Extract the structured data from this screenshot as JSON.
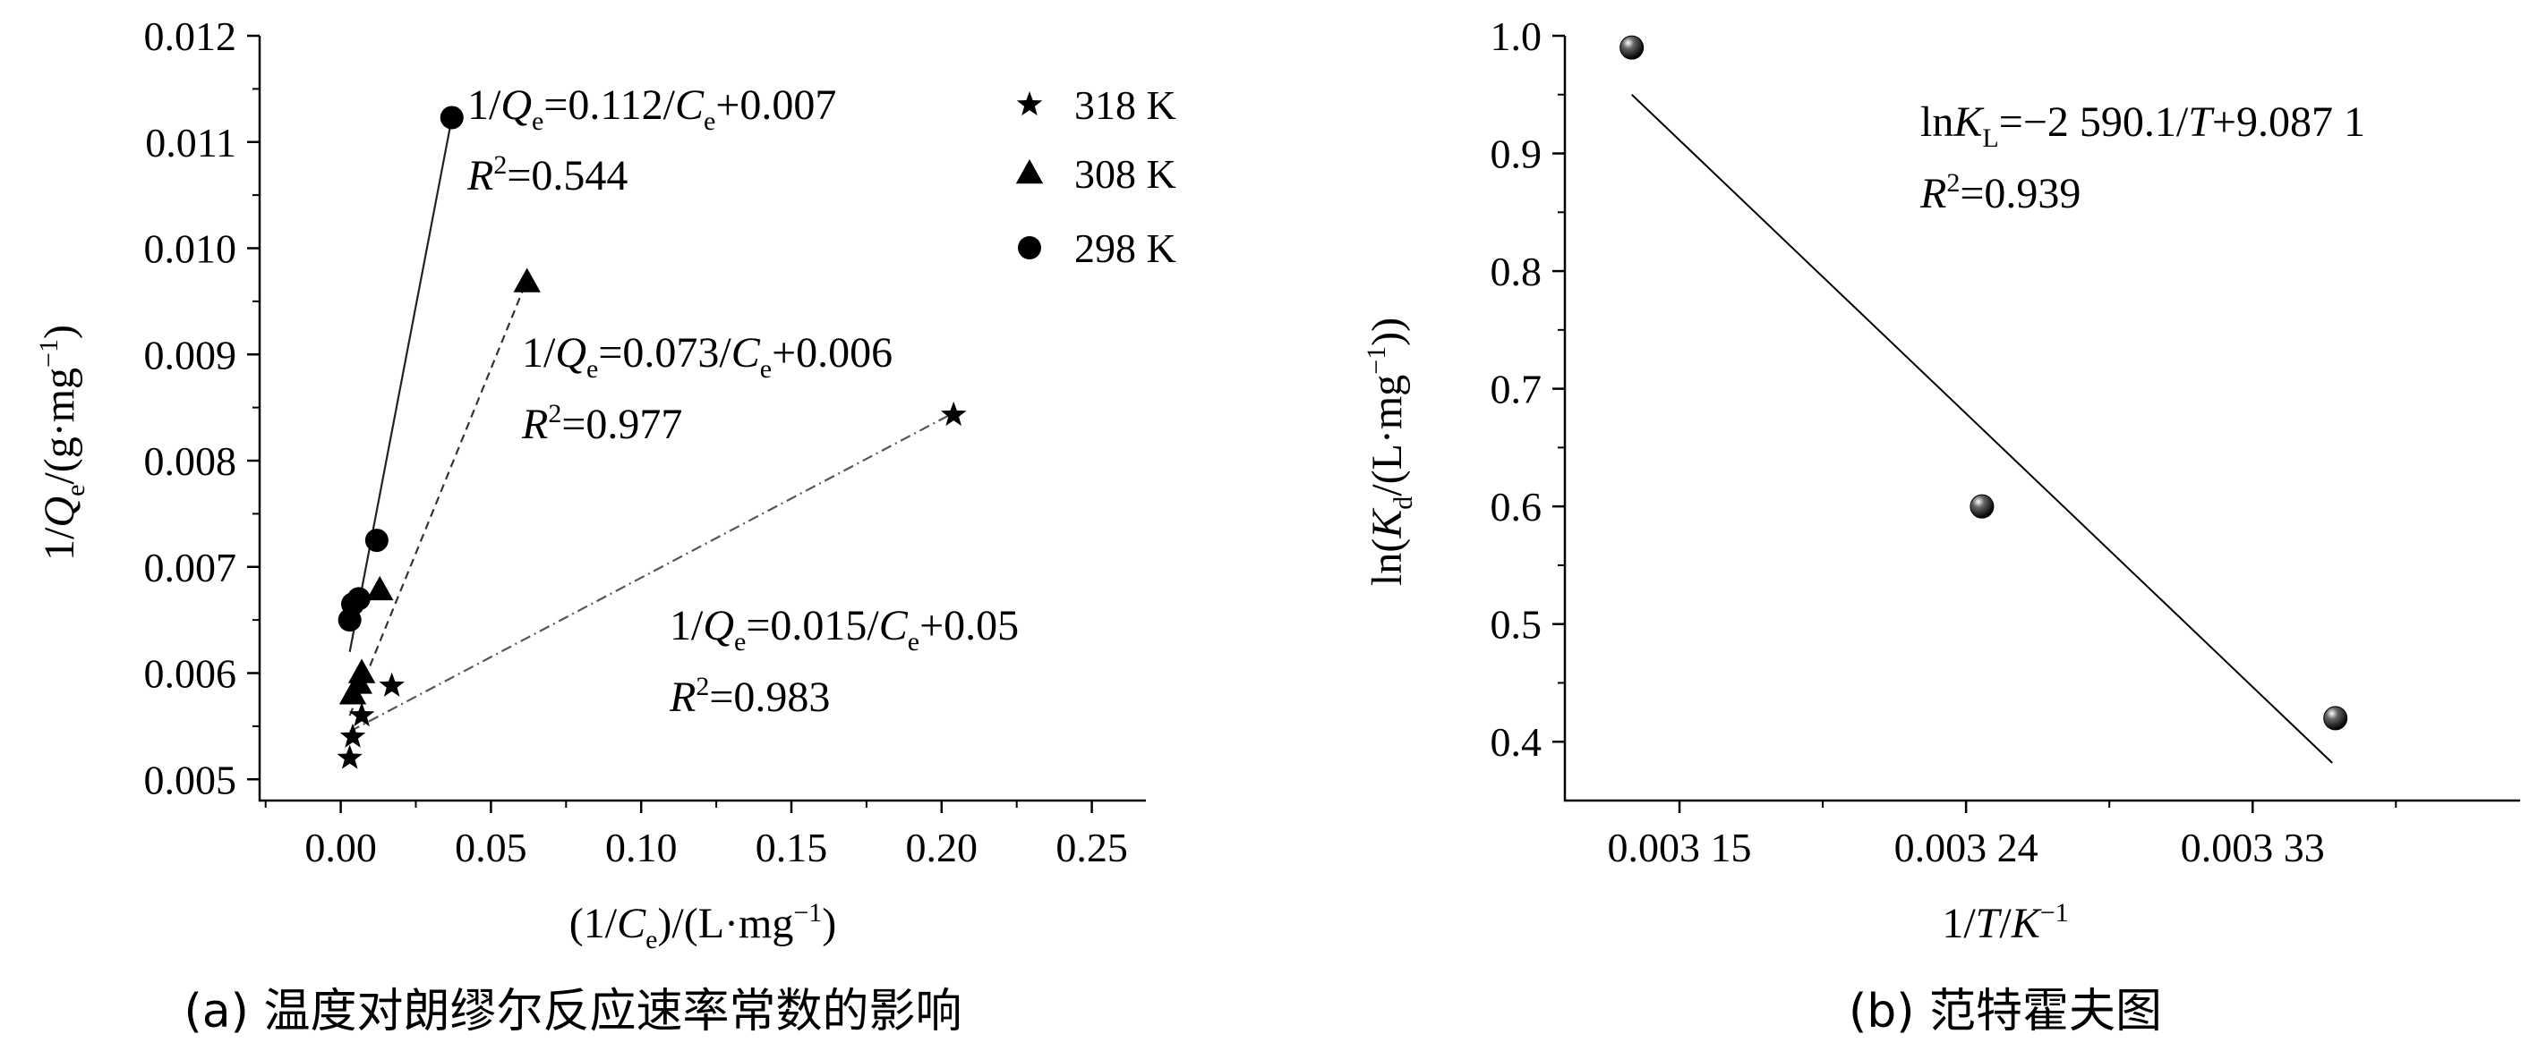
{
  "chart_data": [
    {
      "id": "a",
      "type": "scatter",
      "caption": "(a) 温度对朗缪尔反应速率常数的影响",
      "xlabel": {
        "pre": "(1/",
        "var": "C",
        "sub": "e",
        "post": ")/(L·mg",
        "sup": "−1",
        "end": ")"
      },
      "ylabel": {
        "pre": "1/",
        "var": "Q",
        "sub": "e",
        "post": "/(g·mg",
        "sup": "−1",
        "end": ")"
      },
      "xlim": [
        -0.027,
        0.268
      ],
      "ylim": [
        0.0048,
        0.012
      ],
      "xticks": [
        0.0,
        0.05,
        0.1,
        0.15,
        0.2,
        0.25
      ],
      "xtick_labels": [
        "0.00",
        "0.05",
        "0.10",
        "0.15",
        "0.20",
        "0.25"
      ],
      "yticks": [
        0.005,
        0.006,
        0.007,
        0.008,
        0.009,
        0.01,
        0.011,
        0.012
      ],
      "ytick_labels": [
        "0.005",
        "0.006",
        "0.007",
        "0.008",
        "0.009",
        "0.010",
        "0.011",
        "0.012"
      ],
      "legend_position": "top-right",
      "series": [
        {
          "name": "318 K",
          "marker": "star",
          "line_style": "dashdot",
          "points": [
            [
              0.003,
              0.0052
            ],
            [
              0.004,
              0.0054
            ],
            [
              0.007,
              0.0056
            ],
            [
              0.017,
              0.00588
            ],
            [
              0.204,
              0.00843
            ]
          ],
          "fit": {
            "x": [
              0.003,
              0.204
            ],
            "y": [
              0.00545,
              0.00845
            ]
          },
          "equation": {
            "lhs": "1/",
            "var": "Q",
            "sub": "e",
            "rhs": "=0.015/",
            "var2": "C",
            "sub2": "e",
            "tail": "+0.05"
          },
          "r2": "=0.983"
        },
        {
          "name": "308 K",
          "marker": "triangle",
          "line_style": "dashed",
          "points": [
            [
              0.004,
              0.0058
            ],
            [
              0.006,
              0.0059
            ],
            [
              0.007,
              0.006
            ],
            [
              0.013,
              0.00678
            ],
            [
              0.062,
              0.00968
            ]
          ],
          "fit": {
            "x": [
              0.003,
              0.062
            ],
            "y": [
              0.0056,
              0.0097
            ]
          },
          "equation": {
            "lhs": "1/",
            "var": "Q",
            "sub": "e",
            "rhs": "=0.073/",
            "var2": "C",
            "sub2": "e",
            "tail": "+0.006"
          },
          "r2": "=0.977"
        },
        {
          "name": "298 K",
          "marker": "circle",
          "line_style": "solid",
          "points": [
            [
              0.003,
              0.0065
            ],
            [
              0.004,
              0.00665
            ],
            [
              0.006,
              0.0067
            ],
            [
              0.012,
              0.00725
            ],
            [
              0.037,
              0.01123
            ]
          ],
          "fit": {
            "x": [
              0.003,
              0.037
            ],
            "y": [
              0.0062,
              0.01123
            ]
          },
          "equation": {
            "lhs": "1/",
            "var": "Q",
            "sub": "e",
            "rhs": "=0.112/",
            "var2": "C",
            "sub2": "e",
            "tail": "+0.007"
          },
          "r2": "=0.544"
        }
      ]
    },
    {
      "id": "b",
      "type": "scatter",
      "caption": "(b) 范特霍夫图",
      "xlabel": {
        "pre": "1/",
        "var": "T",
        "post": "/",
        "var2": "K",
        "sup": "−1"
      },
      "ylabel": {
        "pre": "ln(",
        "var": "K",
        "sub": "d",
        "post": "/(L·mg",
        "sup": "−1",
        "end": "))"
      },
      "xlim": [
        0.003114,
        0.003414
      ],
      "ylim": [
        0.35,
        1.0
      ],
      "xticks": [
        0.00315,
        0.00324,
        0.00333
      ],
      "xtick_labels": [
        "0.003 15",
        "0.003 24",
        "0.003 33"
      ],
      "yticks": [
        0.4,
        0.5,
        0.6,
        0.7,
        0.8,
        0.9,
        1.0
      ],
      "ytick_labels": [
        "0.4",
        "0.5",
        "0.6",
        "0.7",
        "0.8",
        "0.9",
        "1.0"
      ],
      "points": [
        [
          0.003135,
          0.99
        ],
        [
          0.003245,
          0.6
        ],
        [
          0.003356,
          0.42
        ]
      ],
      "fit": {
        "x": [
          0.003135,
          0.003355
        ],
        "y": [
          0.95,
          0.382
        ]
      },
      "equation": {
        "pre": "ln",
        "var": "K",
        "sub": "L",
        "mid": "=−2 590.1/",
        "var2": "T",
        "tail": "+9.087 1"
      },
      "r2": "=0.939"
    }
  ]
}
